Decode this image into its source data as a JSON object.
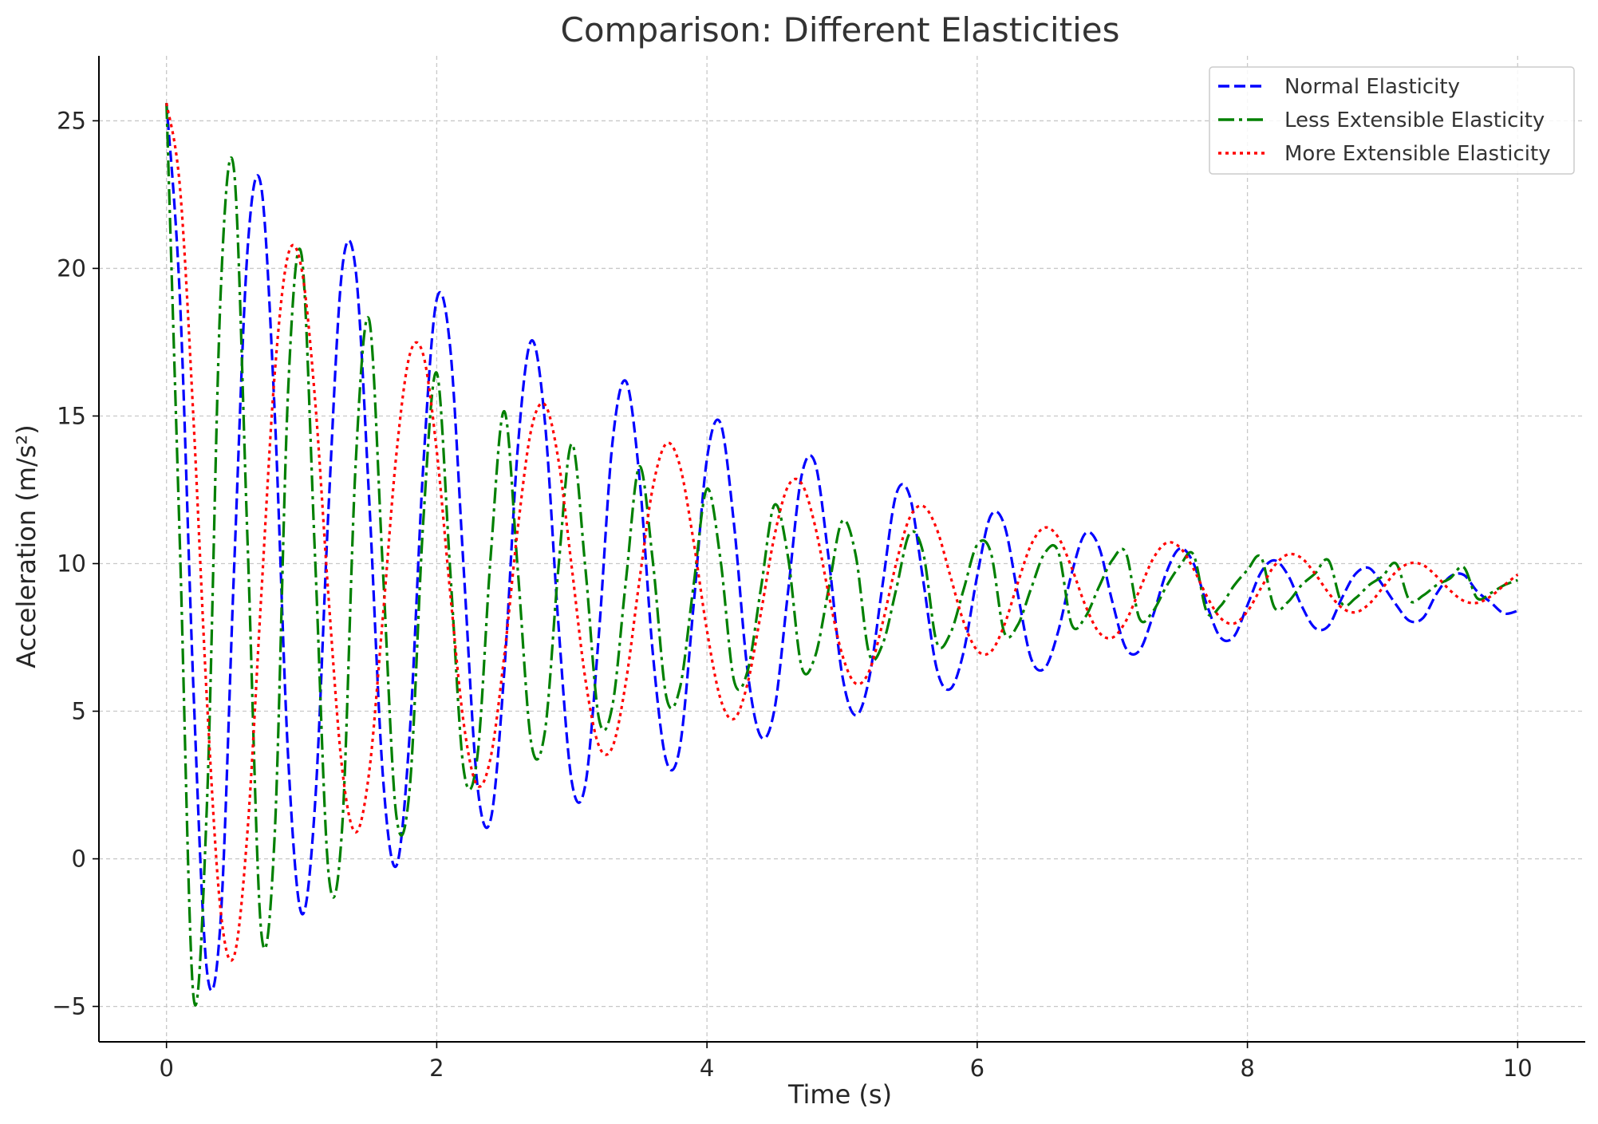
{
  "chart_data": {
    "type": "line",
    "title": "Comparison: Different Elasticities",
    "xlabel": "Time (s)",
    "ylabel": "Acceleration (m/s²)",
    "xlim": [
      -0.5,
      10.5
    ],
    "ylim": [
      -6.2,
      27.2
    ],
    "x_ticks": [
      0,
      2,
      4,
      6,
      8,
      10
    ],
    "x_tick_labels": [
      "0",
      "2",
      "4",
      "6",
      "8",
      "10"
    ],
    "y_ticks": [
      -5,
      0,
      5,
      10,
      15,
      20,
      25
    ],
    "y_tick_labels": [
      "−5",
      "0",
      "5",
      "10",
      "15",
      "20",
      "25"
    ],
    "grid": true,
    "legend_position": "top-right",
    "x": [
      0,
      0.1,
      0.2,
      0.3,
      0.4,
      0.5,
      0.6,
      0.7,
      0.8,
      0.9,
      1,
      1.1,
      1.2,
      1.3,
      1.4,
      1.5,
      1.6,
      1.7,
      1.8,
      1.9,
      2,
      2.1,
      2.2,
      2.3,
      2.4,
      2.5,
      2.6,
      2.7,
      2.8,
      2.9,
      3,
      3.1,
      3.2,
      3.3,
      3.4,
      3.5,
      3.6,
      3.7,
      3.8,
      3.9,
      4,
      4.1,
      4.2,
      4.3,
      4.4,
      4.5,
      4.6,
      4.7,
      4.8,
      4.9,
      5,
      5.1,
      5.2,
      5.3,
      5.4,
      5.5,
      5.6,
      5.7,
      5.8,
      5.9,
      6,
      6.1,
      6.2,
      6.3,
      6.4,
      6.5,
      6.6,
      6.7,
      6.8,
      6.9,
      7,
      7.1,
      7.2,
      7.3,
      7.4,
      7.5,
      7.6,
      7.7,
      7.8,
      7.9,
      8,
      8.1,
      8.2,
      8.3,
      8.4,
      8.5,
      8.6,
      8.7,
      8.8,
      8.9,
      9,
      9.1,
      9.2,
      9.3,
      9.4,
      9.5,
      9.6,
      9.7,
      9.8,
      9.9,
      10
    ],
    "series": [
      {
        "name": "Normal Elasticity",
        "color": "#0000ff",
        "style": "dashed",
        "values": [
          25.6,
          18.93,
          5.7,
          -3.82,
          -2.13,
          9.79,
          20.64,
          22.8,
          15.21,
          3.48,
          -1.85,
          1.89,
          11.94,
          19.97,
          19.95,
          12.18,
          2.91,
          -0.25,
          4.23,
          13.27,
          18.95,
          17.3,
          9.79,
          2.53,
          1.34,
          6.35,
          13.92,
          17.55,
          14.84,
          7.98,
          2.6,
          2.51,
          7.61,
          14.07,
          16.18,
          12.93,
          6.93,
          3.3,
          3.8,
          8.53,
          13.55,
          14.76,
          11.34,
          6.38,
          4.13,
          5.07,
          9.04,
          12.97,
          13.41,
          10.21,
          6.25,
          4.86,
          6.1,
          9.29,
          12.34,
          12.3,
          9.44,
          6.45,
          5.75,
          7.02,
          9.59,
          11.62,
          11.32,
          8.98,
          6.77,
          6.46,
          7.71,
          9.68,
          11.02,
          10.58,
          8.71,
          7.14,
          7.05,
          8.22,
          9.7,
          10.51,
          10.02,
          8.6,
          7.5,
          7.53,
          8.59,
          9.7,
          10.11,
          9.61,
          8.58,
          7.82,
          7.89,
          8.84,
          9.65,
          9.85,
          9.28,
          8.61,
          8.06,
          8.16,
          8.98,
          9.56,
          9.62,
          9.06,
          8.69,
          8.31,
          8.4
        ]
      },
      {
        "name": "Less Extensible Elasticity",
        "color": "#008000",
        "style": "dashdot",
        "values": [
          25.6,
          10.51,
          -4.67,
          1.92,
          19.06,
          23.32,
          10.74,
          -2.41,
          0.73,
          15.84,
          20.45,
          10.18,
          -0.52,
          1.04,
          13.37,
          18.26,
          9.93,
          1.5,
          2.38,
          11.39,
          16.46,
          9.75,
          3.0,
          3.43,
          10.29,
          15.16,
          9.78,
          3.91,
          4.29,
          9.82,
          14.06,
          9.86,
          4.76,
          5.18,
          9.41,
          13.29,
          10.05,
          5.47,
          5.79,
          9.23,
          12.53,
          10.14,
          6.04,
          6.35,
          9.18,
          11.99,
          10.22,
          6.51,
          6.85,
          9.13,
          11.44,
          10.31,
          6.95,
          7.27,
          9.12,
          11.02,
          10.37,
          7.34,
          7.62,
          9.13,
          10.64,
          10.39,
          7.67,
          7.92,
          9.17,
          10.36,
          10.4,
          7.93,
          8.19,
          9.2,
          10.12,
          10.37,
          8.15,
          8.38,
          9.23,
          9.92,
          10.31,
          8.35,
          8.56,
          9.25,
          9.78,
          10.22,
          8.51,
          8.7,
          9.27,
          9.66,
          10.11,
          8.64,
          8.83,
          9.27,
          9.57,
          10.0,
          8.75,
          8.92,
          9.27,
          9.5,
          9.88,
          8.83,
          9.0,
          9.27,
          9.44
        ]
      },
      {
        "name": "More Extensible Elasticity",
        "color": "#ff0000",
        "style": "dotted",
        "values": [
          25.6,
          22.73,
          14.88,
          5.32,
          -1.73,
          -3.3,
          0.96,
          8.81,
          16.37,
          20.46,
          19.98,
          15.53,
          8.82,
          3.06,
          0.9,
          2.94,
          8.12,
          13.64,
          17.07,
          17.08,
          13.82,
          9.0,
          4.58,
          2.49,
          3.45,
          6.88,
          11.19,
          14.55,
          15.39,
          13.53,
          9.85,
          6.09,
          3.83,
          3.78,
          5.99,
          9.42,
          12.6,
          14.07,
          13.31,
          10.78,
          7.73,
          5.42,
          4.74,
          5.93,
          8.35,
          10.95,
          12.62,
          12.72,
          11.28,
          8.98,
          6.93,
          5.94,
          6.35,
          7.99,
          10.0,
          11.55,
          11.95,
          11.18,
          9.6,
          8.02,
          7.06,
          7.01,
          7.91,
          9.34,
          10.65,
          11.22,
          10.89,
          9.85,
          8.59,
          7.68,
          7.49,
          8.05,
          9.09,
          10.15,
          10.7,
          10.55,
          9.83,
          8.89,
          8.16,
          7.97,
          8.38,
          9.17,
          9.93,
          10.31,
          10.19,
          9.66,
          9.01,
          8.5,
          8.35,
          8.63,
          9.17,
          9.72,
          10.01,
          9.95,
          9.57,
          9.09,
          8.74,
          8.67,
          8.89,
          9.27,
          9.63
        ]
      }
    ]
  }
}
